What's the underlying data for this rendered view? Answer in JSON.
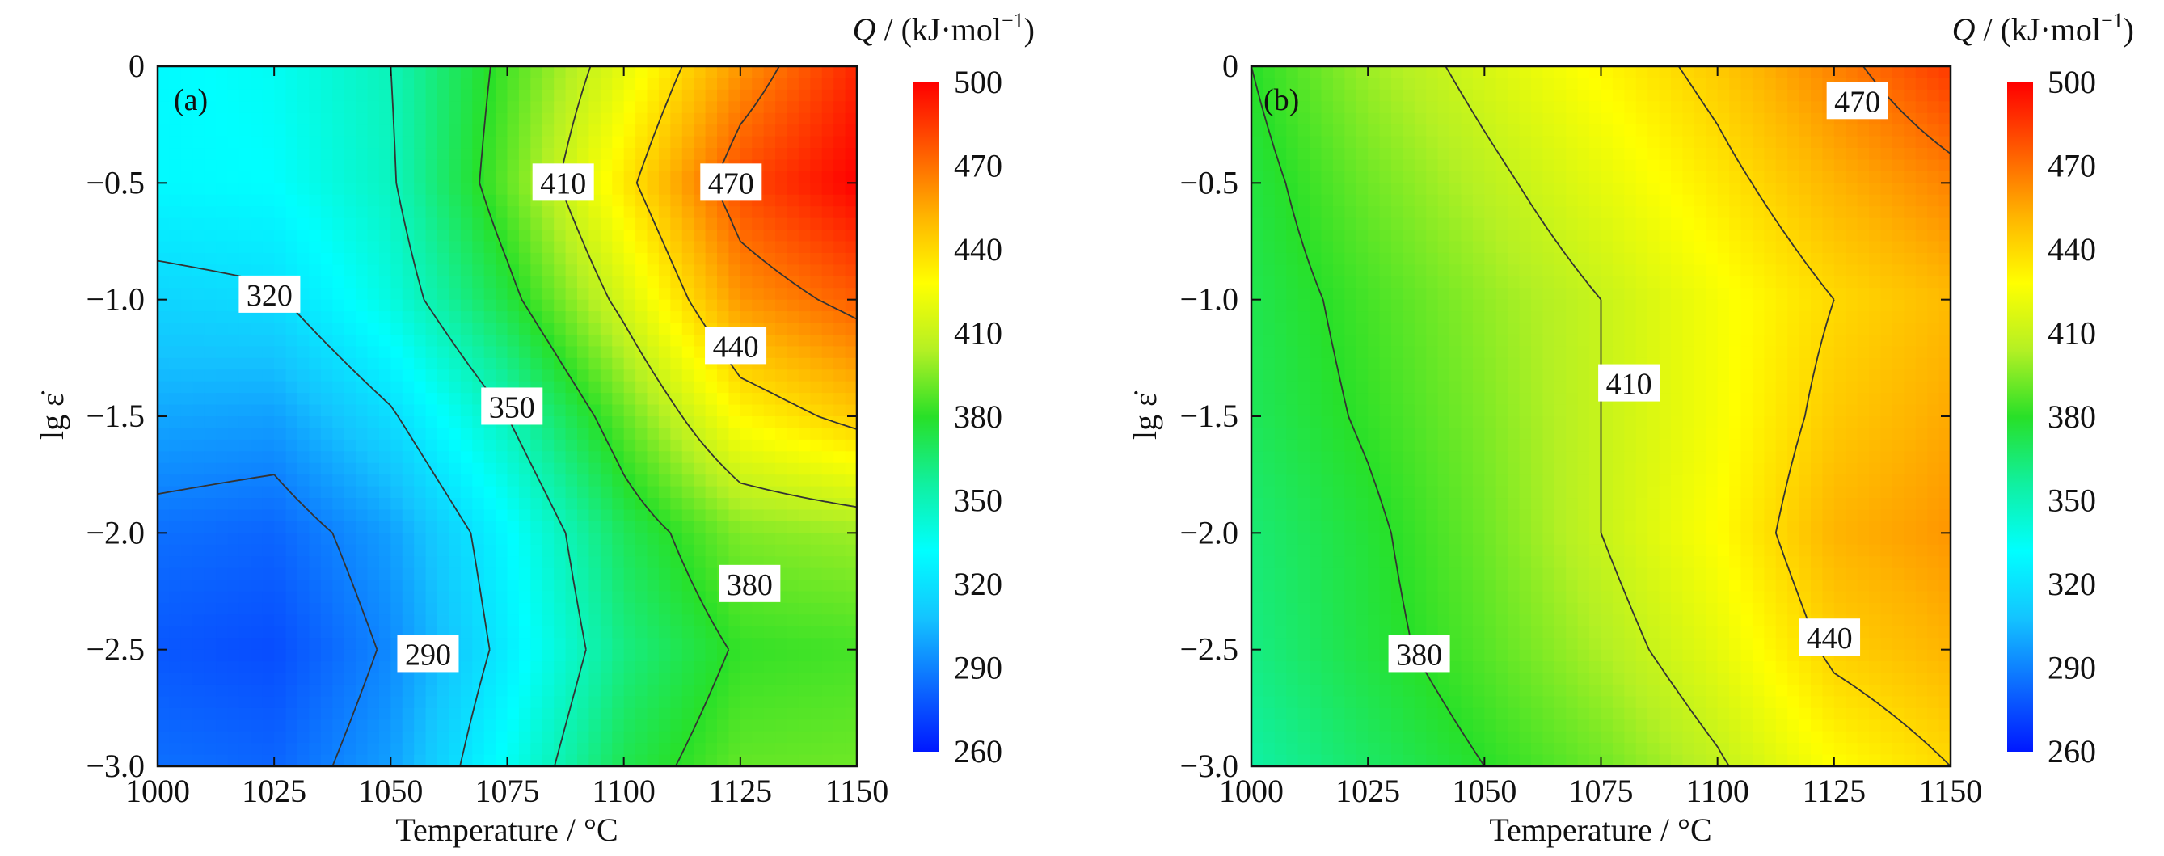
{
  "chart_data": [
    {
      "type": "heatmap",
      "panel_label": "(a)",
      "xlabel": "Temperature / °C",
      "ylabel": "lg ε̇",
      "xlim": [
        1000,
        1150
      ],
      "ylim": [
        -3.0,
        0
      ],
      "x_ticks": [
        "1000",
        "1025",
        "1050",
        "1075",
        "1100",
        "1125",
        "1150"
      ],
      "y_ticks": [
        "0",
        "−0.5",
        "−1.0",
        "−1.5",
        "−2.0",
        "−2.5",
        "−3.0"
      ],
      "grid": [
        [
          0,
          1000,
          1025,
          1050,
          1075,
          1100,
          1125,
          1150
        ],
        [
          0.0,
          330,
          335,
          350,
          385,
          420,
          460,
          490
        ],
        [
          -0.5,
          330,
          332,
          348,
          390,
          435,
          480,
          500
        ],
        [
          -1.0,
          315,
          318,
          340,
          375,
          415,
          460,
          475
        ],
        [
          -1.5,
          300,
          298,
          318,
          350,
          390,
          430,
          445
        ],
        [
          -2.0,
          285,
          282,
          298,
          330,
          370,
          395,
          400
        ],
        [
          -2.5,
          278,
          275,
          292,
          325,
          362,
          382,
          385
        ],
        [
          -3.0,
          285,
          282,
          298,
          335,
          372,
          390,
          392
        ]
      ],
      "contour_levels": [
        290,
        320,
        350,
        380,
        410,
        440,
        470
      ],
      "contour_labels": [
        {
          "text": "290",
          "x": 1058,
          "y": -2.52
        },
        {
          "text": "320",
          "x": 1024,
          "y": -0.98
        },
        {
          "text": "350",
          "x": 1076,
          "y": -1.46
        },
        {
          "text": "380",
          "x": 1127,
          "y": -2.22
        },
        {
          "text": "410",
          "x": 1087,
          "y": -0.5
        },
        {
          "text": "440",
          "x": 1124,
          "y": -1.2
        },
        {
          "text": "470",
          "x": 1123,
          "y": -0.5
        }
      ]
    },
    {
      "type": "heatmap",
      "panel_label": "(b)",
      "xlabel": "Temperature / °C",
      "ylabel": "lg ε̇",
      "xlim": [
        1000,
        1150
      ],
      "ylim": [
        -3.0,
        0
      ],
      "x_ticks": [
        "1000",
        "1025",
        "1050",
        "1075",
        "1100",
        "1125",
        "1150"
      ],
      "y_ticks": [
        "0",
        "−0.5",
        "−1.0",
        "−1.5",
        "−2.0",
        "−2.5",
        "−3.0"
      ],
      "grid": [
        [
          0,
          1000,
          1025,
          1050,
          1075,
          1100,
          1125,
          1150
        ],
        [
          0.0,
          380,
          400,
          415,
          430,
          445,
          465,
          485
        ],
        [
          -0.5,
          375,
          392,
          406,
          420,
          435,
          452,
          465
        ],
        [
          -1.0,
          372,
          385,
          398,
          410,
          425,
          440,
          450
        ],
        [
          -1.5,
          370,
          382,
          395,
          410,
          425,
          445,
          455
        ],
        [
          -2.0,
          365,
          377,
          392,
          410,
          428,
          452,
          460
        ],
        [
          -2.5,
          362,
          375,
          388,
          403,
          420,
          443,
          452
        ],
        [
          -3.0,
          355,
          368,
          380,
          392,
          408,
          428,
          440
        ]
      ],
      "contour_levels": [
        380,
        410,
        440,
        470
      ],
      "contour_labels": [
        {
          "text": "380",
          "x": 1036,
          "y": -2.52
        },
        {
          "text": "410",
          "x": 1081,
          "y": -1.36
        },
        {
          "text": "440",
          "x": 1124,
          "y": -2.45
        },
        {
          "text": "470",
          "x": 1130,
          "y": -0.15
        }
      ]
    }
  ],
  "colorbar": {
    "title": "Q / (kJ·mol⁻¹)",
    "title_symbol": "Q",
    "title_unit": " / (kJ·mol",
    "title_sup": "−1",
    "title_close": ")",
    "range": [
      260,
      500
    ],
    "ticks": [
      "500",
      "470",
      "440",
      "410",
      "380",
      "350",
      "320",
      "290",
      "260"
    ],
    "colors": [
      "#0018ff",
      "#0c6cff",
      "#14c4ff",
      "#00ffff",
      "#10f0a0",
      "#28e028",
      "#b4f024",
      "#ffff00",
      "#ffb400",
      "#ff5a00",
      "#ff0000"
    ]
  }
}
